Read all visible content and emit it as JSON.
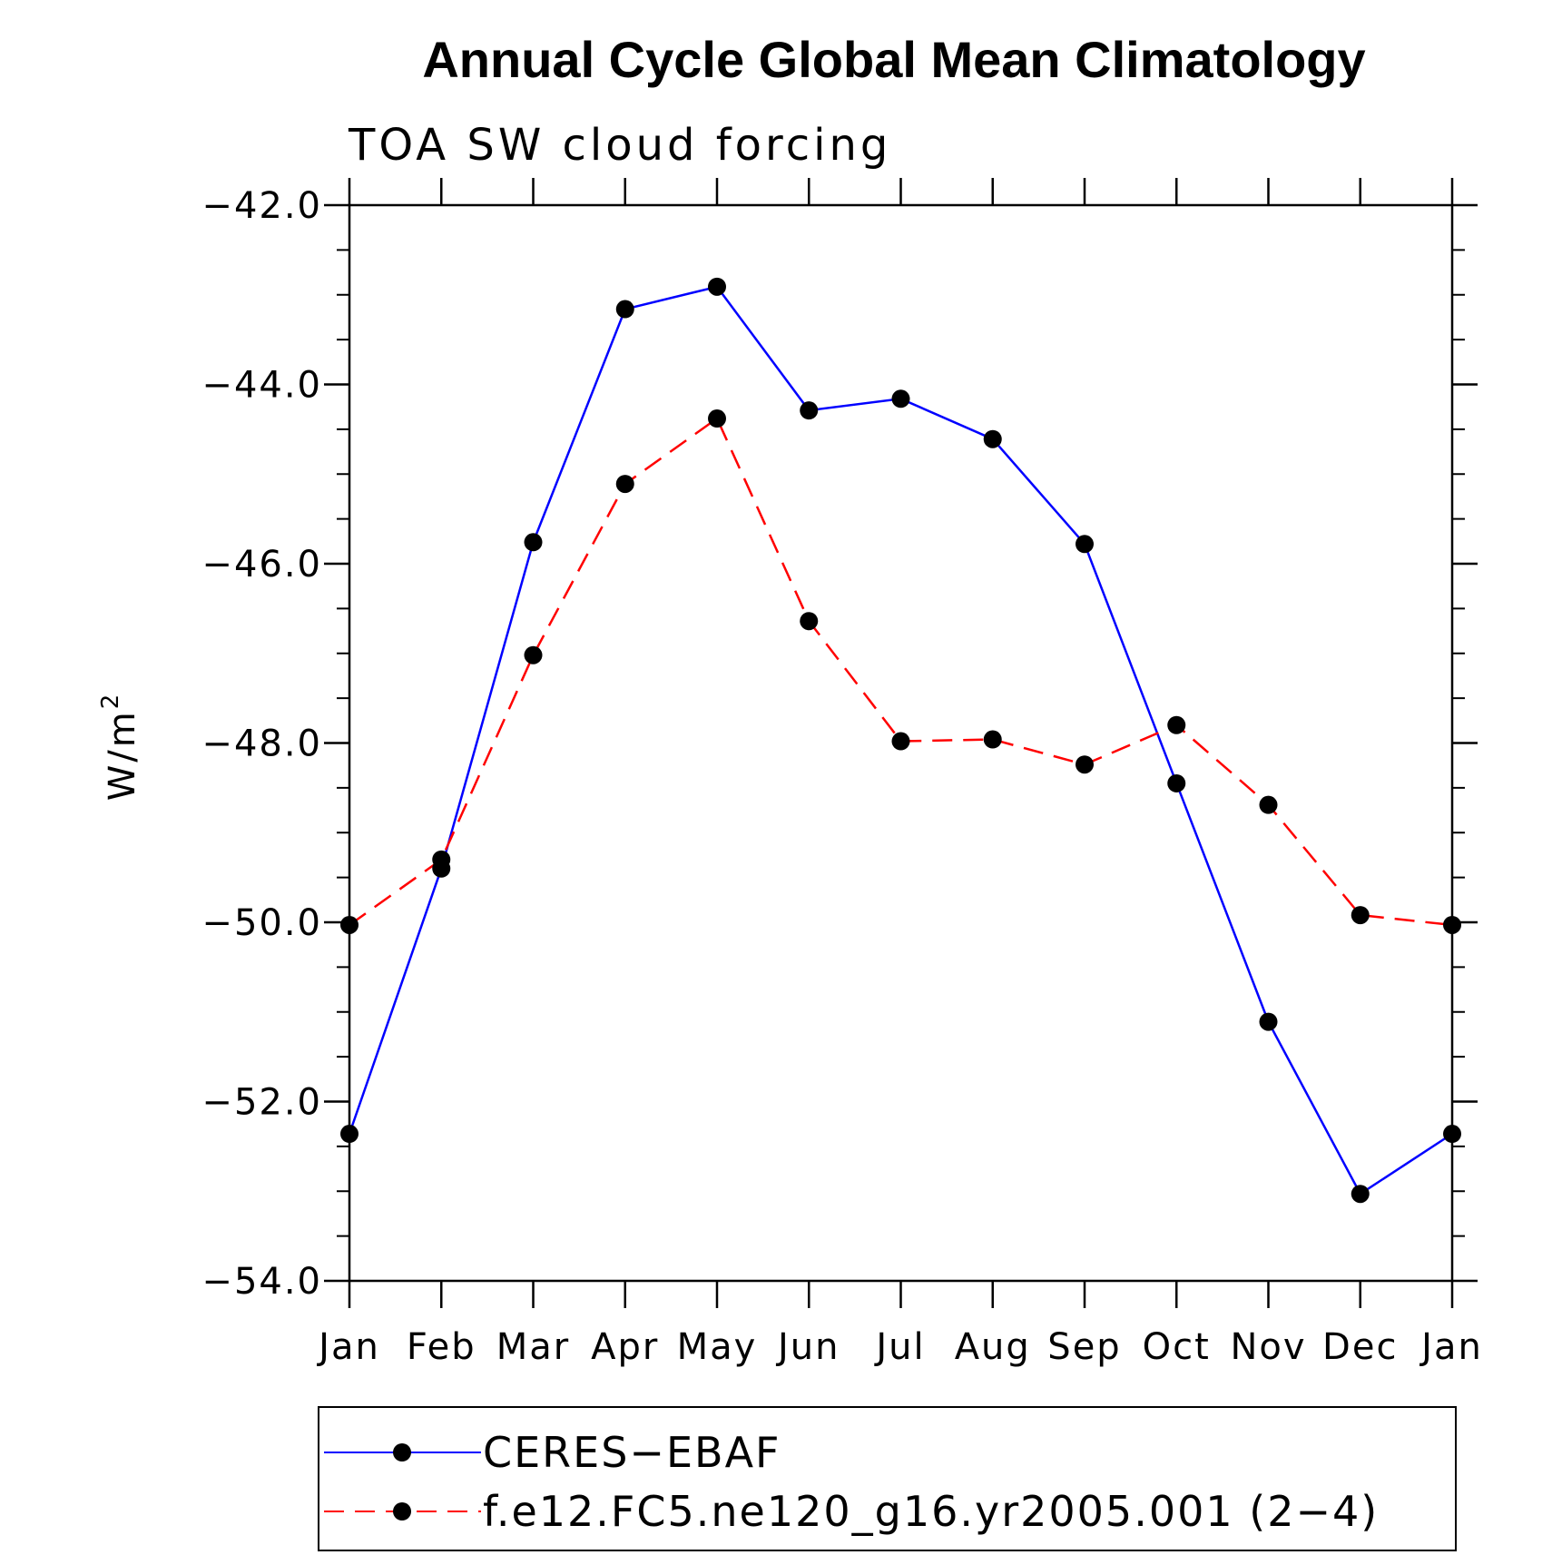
{
  "chart_data": {
    "type": "line",
    "title": "Annual Cycle Global Mean Climatology",
    "subtitle": "TOA SW cloud forcing",
    "ylabel_base": "W/m",
    "ylabel_sup": "2",
    "categories": [
      "Jan",
      "Feb",
      "Mar",
      "Apr",
      "May",
      "Jun",
      "Jul",
      "Aug",
      "Sep",
      "Oct",
      "Nov",
      "Dec",
      "Jan"
    ],
    "ylim": [
      -54.0,
      -42.0
    ],
    "yticks": [
      "−42.0",
      "−44.0",
      "−46.0",
      "−48.0",
      "−50.0",
      "−52.0",
      "−54.0"
    ],
    "ytick_values": [
      -42.0,
      -44.0,
      -46.0,
      -48.0,
      -50.0,
      -52.0,
      -54.0
    ],
    "series": [
      {
        "name": "CERES−EBAF",
        "color": "#0000ff",
        "dash": "solid",
        "values": [
          -52.36,
          -49.4,
          -45.76,
          -43.16,
          -42.91,
          -44.29,
          -44.16,
          -44.61,
          -45.78,
          -48.45,
          -51.11,
          -53.03,
          -52.36
        ]
      },
      {
        "name": "f.e12.FC5.ne120_g16.yr2005.001 (2−4)",
        "color": "#ff0000",
        "dash": "dashed",
        "values": [
          -50.03,
          -49.3,
          -47.02,
          -45.11,
          -44.38,
          -46.64,
          -47.98,
          -47.96,
          -48.24,
          -47.8,
          -48.69,
          -49.92,
          -50.03
        ]
      }
    ],
    "marker_color": "#000000",
    "legend_position": "bottom"
  }
}
